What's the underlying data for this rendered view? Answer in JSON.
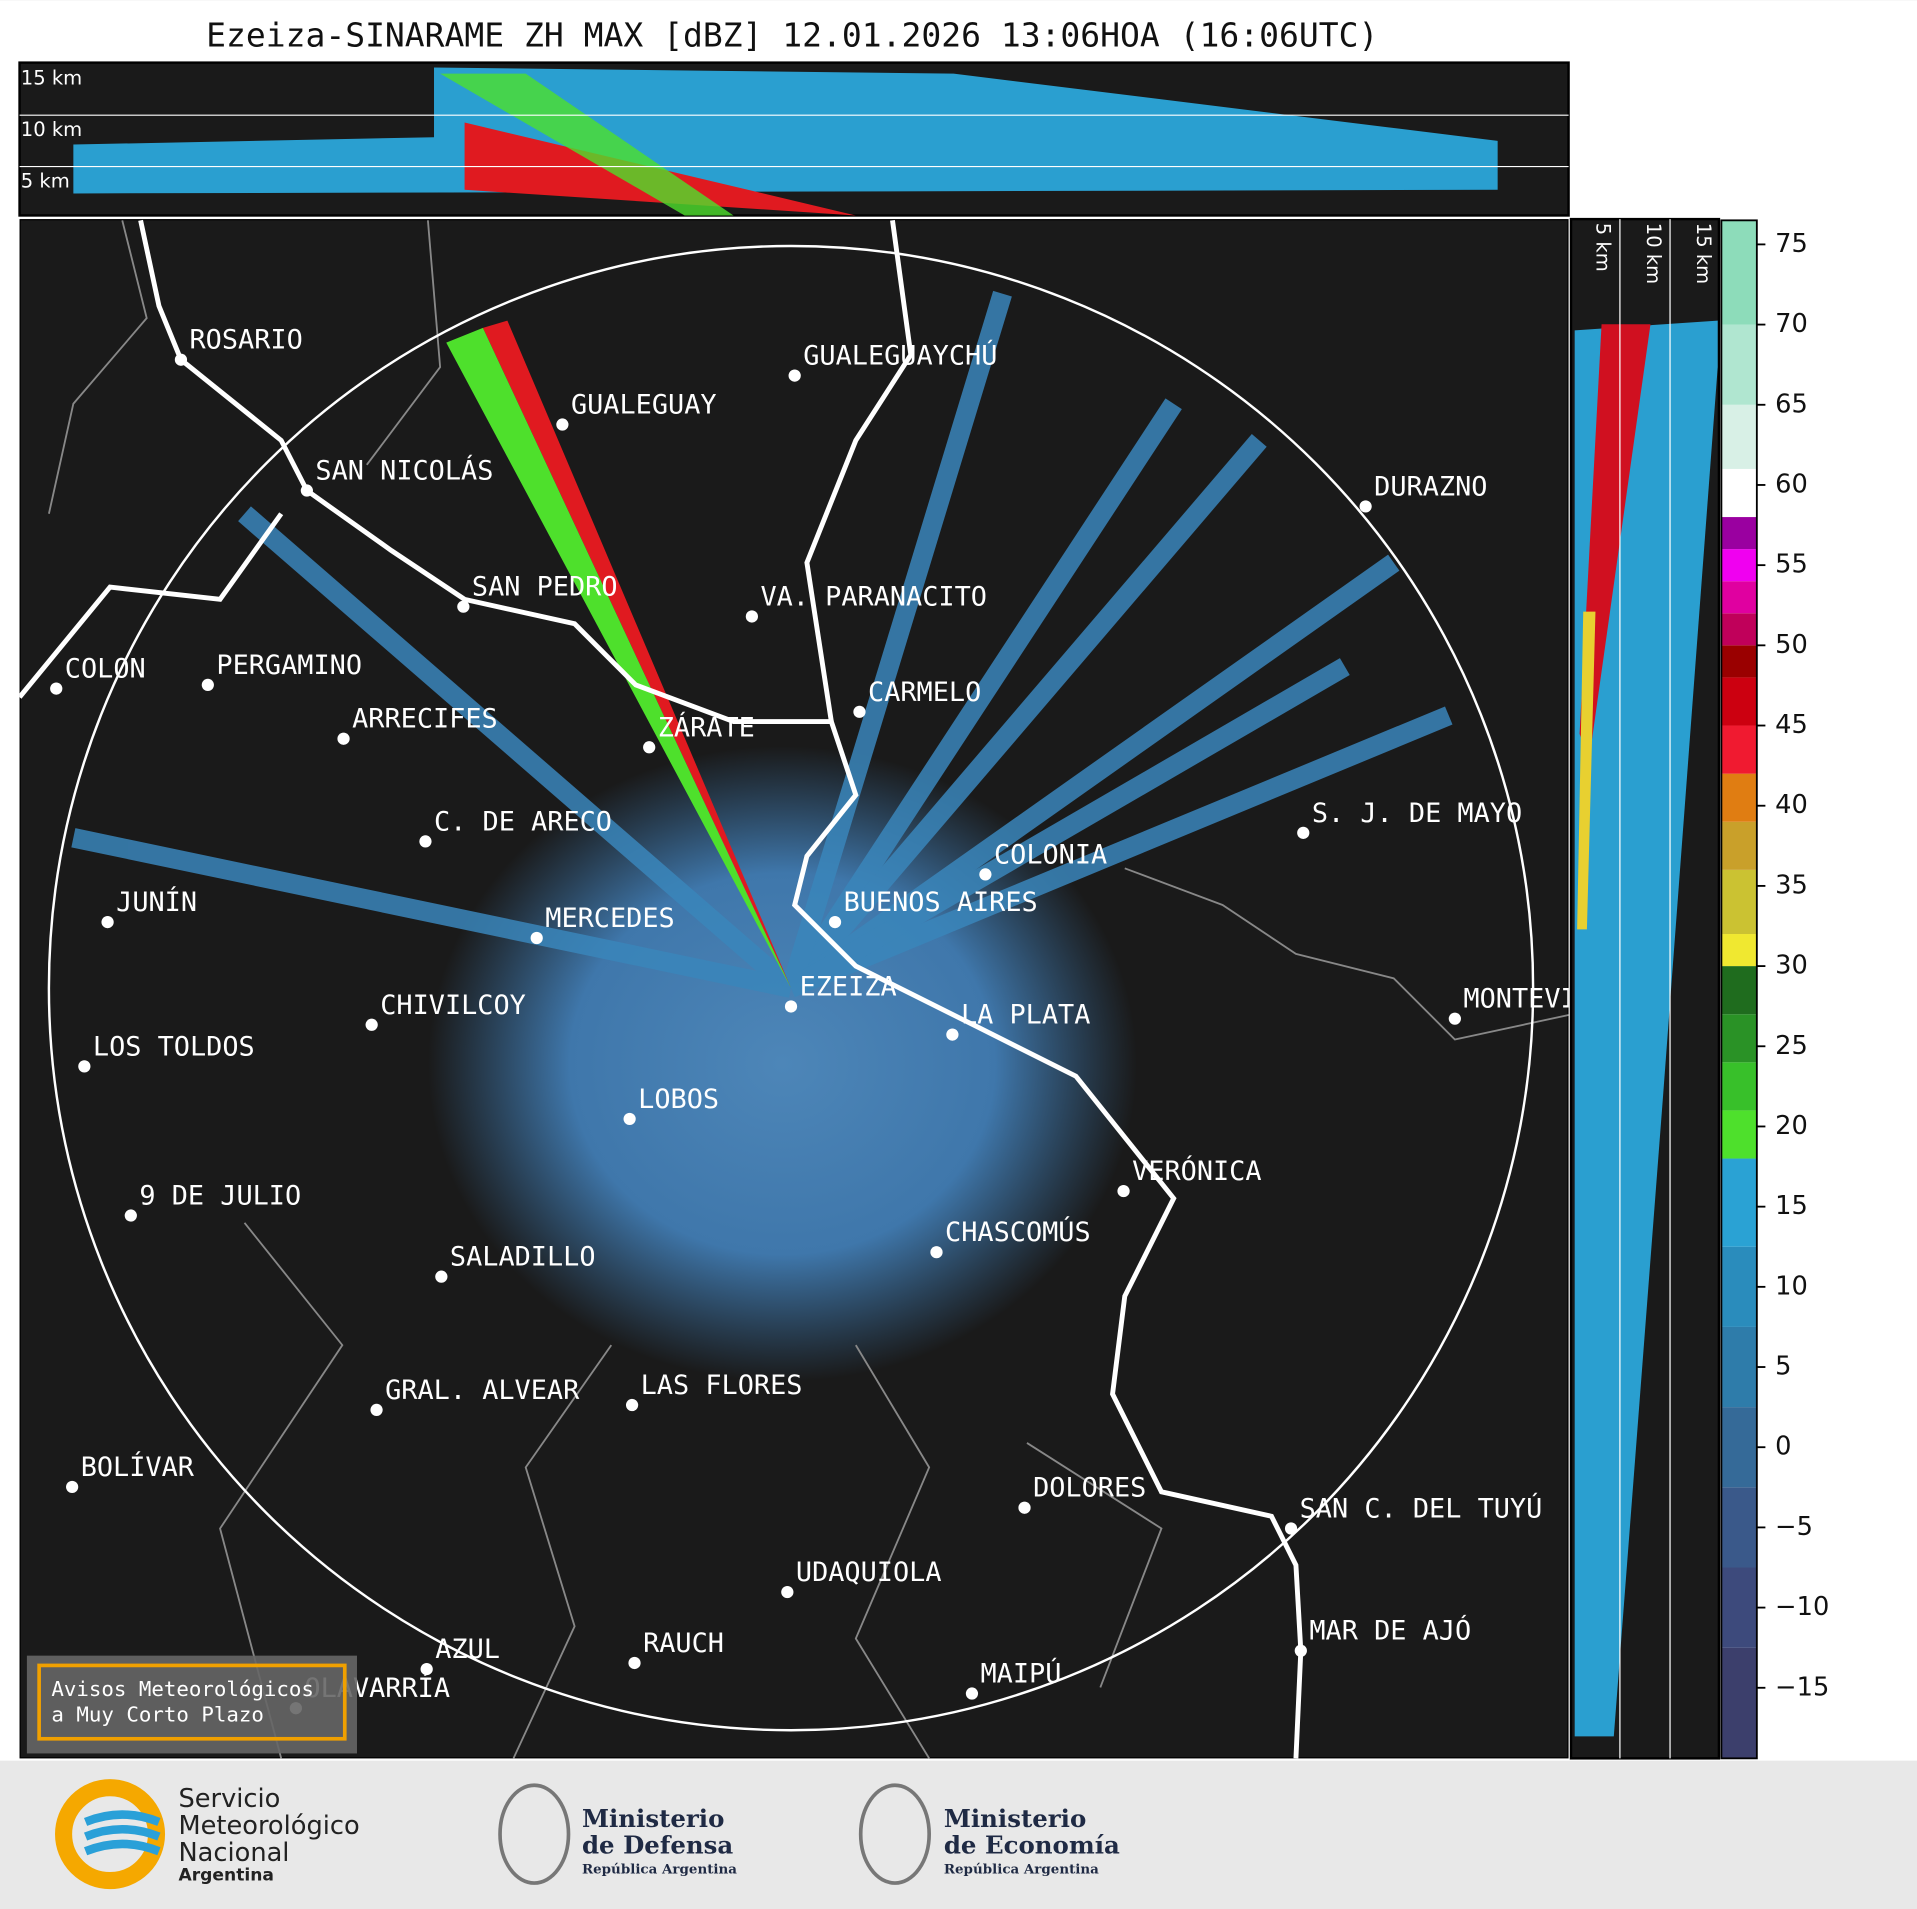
{
  "title": "Ezeiza-SINARAME ZH MAX [dBZ] 12.01.2026 13:06HOA (16:06UTC)",
  "cross_section_top": {
    "height_labels": [
      "15 km",
      "10 km",
      "5 km"
    ]
  },
  "cross_section_right": {
    "height_labels": [
      "5 km",
      "10 km",
      "15 km"
    ]
  },
  "cities": [
    "ROSARIO",
    "GUALEGUAYCHÚ",
    "GUALEGUAY",
    "SAN NICOLÁS",
    "DURAZNO",
    "SAN PEDRO",
    "VA. PARANACITO",
    "COLON",
    "PERGAMINO",
    "CARMELO",
    "ARRECIFES",
    "ZÁRATE",
    "S. J. DE MAYO",
    "C. DE ARECO",
    "COLONIA",
    "BUENOS AIRES",
    "JUNÍN",
    "MERCEDES",
    "MONTEVIDEO",
    "EZEIZA",
    "LA PLATA",
    "CHIVILCOY",
    "LOS TOLDOS",
    "LOBOS",
    "VERÓNICA",
    "9 DE JULIO",
    "CHASCOMÚS",
    "SALADILLO",
    "GRAL. ALVEAR",
    "LAS FLORES",
    "BOLÍVAR",
    "DOLORES",
    "SAN C. DEL TUYÚ",
    "UDAQUIOLA",
    "RAUCH",
    "AZUL",
    "OLAVARRÍA",
    "MAR DE AJÓ",
    "MAIPÚ"
  ],
  "colorbar": {
    "lim": [
      -19.4,
      76.5
    ],
    "ticks": [
      75,
      70,
      65,
      60,
      55,
      50,
      45,
      40,
      35,
      30,
      25,
      20,
      15,
      10,
      5,
      0,
      {
        "value": -5,
        "label": "−5"
      },
      {
        "value": -10,
        "label": "−10"
      },
      {
        "value": -15,
        "label": "−15"
      }
    ],
    "segments": [
      {
        "from": -19.4,
        "to": -12.5,
        "color": "#3c3f6c"
      },
      {
        "from": -12.5,
        "to": -7.5,
        "color": "#3d4a7c"
      },
      {
        "from": -7.5,
        "to": -2.5,
        "color": "#3a598a"
      },
      {
        "from": -2.5,
        "to": 2.5,
        "color": "#356a98"
      },
      {
        "from": 2.5,
        "to": 7.5,
        "color": "#2e7caa"
      },
      {
        "from": 7.5,
        "to": 12.5,
        "color": "#2a8cbc"
      },
      {
        "from": 12.5,
        "to": 18,
        "color": "#2aa2d4"
      },
      {
        "from": 18,
        "to": 21,
        "color": "#4ee02c"
      },
      {
        "from": 21,
        "to": 24,
        "color": "#38c02a"
      },
      {
        "from": 24,
        "to": 27,
        "color": "#2a9226"
      },
      {
        "from": 27,
        "to": 30,
        "color": "#1f6c1e"
      },
      {
        "from": 30,
        "to": 32,
        "color": "#f0e830"
      },
      {
        "from": 32,
        "to": 36,
        "color": "#cbc232"
      },
      {
        "from": 36,
        "to": 39,
        "color": "#c9a02a"
      },
      {
        "from": 39,
        "to": 42,
        "color": "#e07d12"
      },
      {
        "from": 42,
        "to": 45,
        "color": "#f01a30"
      },
      {
        "from": 45,
        "to": 48,
        "color": "#cc0010"
      },
      {
        "from": 48,
        "to": 50,
        "color": "#9a0000"
      },
      {
        "from": 50,
        "to": 52,
        "color": "#c0005a"
      },
      {
        "from": 52,
        "to": 54,
        "color": "#e000a0"
      },
      {
        "from": 54,
        "to": 56,
        "color": "#f000f0"
      },
      {
        "from": 56,
        "to": 58,
        "color": "#9a00a0"
      },
      {
        "from": 58,
        "to": 61,
        "color": "#ffffff"
      },
      {
        "from": 61,
        "to": 65,
        "color": "#d8f0e6"
      },
      {
        "from": 65,
        "to": 70,
        "color": "#b0e6d0"
      },
      {
        "from": 70,
        "to": 76.5,
        "color": "#8ddcba"
      }
    ]
  },
  "warning_box": {
    "lines": [
      "Avisos Meteorológicos",
      "a Muy Corto Plazo"
    ]
  },
  "logos": {
    "smn": [
      "Servicio",
      "Meteorológico",
      "Nacional",
      "Argentina"
    ],
    "defensa": [
      "Ministerio",
      "de Defensa",
      "República Argentina"
    ],
    "economia": [
      "Ministerio",
      "de Economía",
      "República Argentina"
    ]
  }
}
